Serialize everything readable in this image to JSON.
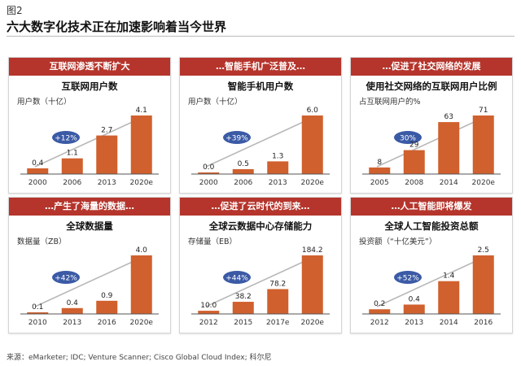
{
  "figure_label": "图2",
  "main_title": "六大数字化技术正在加速影响着当今世界",
  "source": "来源：eMarketer; IDC; Venture Scanner; Cisco Global Cloud Index; 科尔尼",
  "colors": {
    "bar": "#d0602d",
    "banner": "#b5352c",
    "growth_pill": "#3b5aa6",
    "arrow": "#b8b8b8",
    "baseline": "#555555"
  },
  "panels": [
    {
      "banner": "互联网渗透不断扩大",
      "chart_title": "互联网用户数",
      "unit": "用户数（十亿）",
      "growth": "+12%",
      "chart_data": {
        "type": "bar",
        "categories": [
          "2000",
          "2006",
          "2013",
          "2020e"
        ],
        "values": [
          0.4,
          1.1,
          2.7,
          4.1
        ],
        "labels": [
          "0.4",
          "1.1",
          "2.7",
          "4.1"
        ],
        "title": "互联网用户数",
        "ylabel": "用户数（十亿）"
      }
    },
    {
      "banner": "…智能手机广泛普及…",
      "chart_title": "智能手机用户数",
      "unit": "用户数（十亿）",
      "growth": "+39%",
      "chart_data": {
        "type": "bar",
        "categories": [
          "2000",
          "2006",
          "2013",
          "2020e"
        ],
        "values": [
          0.0,
          0.5,
          1.3,
          6.0
        ],
        "labels": [
          "0.0",
          "0.5",
          "1.3",
          "6.0"
        ],
        "title": "智能手机用户数",
        "ylabel": "用户数（十亿）"
      }
    },
    {
      "banner": "…促进了社交网络的发展",
      "chart_title": "使用社交网络的互联网用户比例",
      "unit": "占互联网用户的%",
      "growth": "30%",
      "chart_data": {
        "type": "bar",
        "categories": [
          "2005",
          "2008",
          "2014",
          "2020e"
        ],
        "values": [
          8,
          29,
          63,
          71
        ],
        "labels": [
          "8",
          "29",
          "63",
          "71"
        ],
        "title": "使用社交网络的互联网用户比例",
        "ylabel": "占互联网用户的%"
      }
    },
    {
      "banner": "…产生了海量的数据…",
      "chart_title": "全球数据量",
      "unit": "数据量（ZB）",
      "growth": "+42%",
      "chart_data": {
        "type": "bar",
        "categories": [
          "2010",
          "2013",
          "2016",
          "2020e"
        ],
        "values": [
          0.1,
          0.4,
          0.9,
          4.0
        ],
        "labels": [
          "0.1",
          "0.4",
          "0.9",
          "4.0"
        ],
        "title": "全球数据量",
        "ylabel": "数据量（ZB）"
      }
    },
    {
      "banner": "…促进了云时代的到来…",
      "chart_title": "全球云数据中心存储能力",
      "unit": "存储量（EB）",
      "growth": "+44%",
      "chart_data": {
        "type": "bar",
        "categories": [
          "2012",
          "2015",
          "2017e",
          "2020e"
        ],
        "values": [
          10.0,
          38.2,
          78.2,
          184.2
        ],
        "labels": [
          "10.0",
          "38.2",
          "78.2",
          "184.2"
        ],
        "title": "全球云数据中心存储能力",
        "ylabel": "存储量（EB）"
      }
    },
    {
      "banner": "…人工智能即将爆发",
      "chart_title": "全球人工智能投资总额",
      "unit": "投资额（“十亿美元”）",
      "growth": "+52%",
      "chart_data": {
        "type": "bar",
        "categories": [
          "2012",
          "2013",
          "2014",
          "2016"
        ],
        "values": [
          0.2,
          0.4,
          1.4,
          2.5
        ],
        "labels": [
          "0.2",
          "0.4",
          "1.4",
          "2.5"
        ],
        "title": "全球人工智能投资总额",
        "ylabel": "投资额（“十亿美元”）"
      }
    }
  ]
}
